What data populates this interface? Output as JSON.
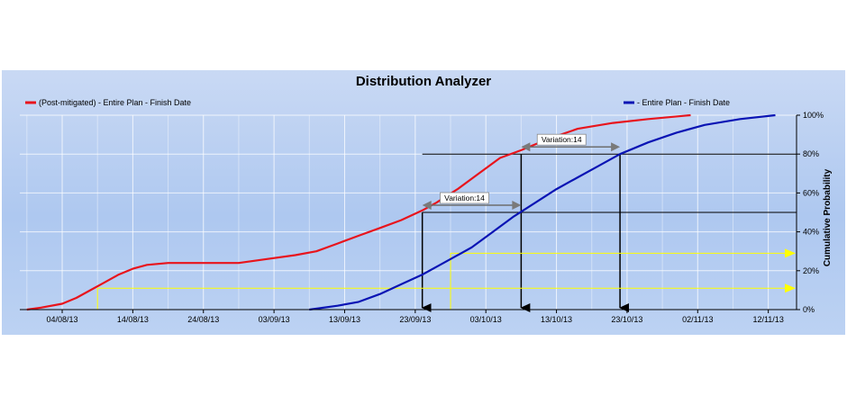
{
  "chart_data": {
    "type": "line",
    "title": "Distribution Analyzer",
    "xlabel": "",
    "ylabel": "Cumulative Probability",
    "xlim": [
      "2013-07-29",
      "2013-11-16"
    ],
    "ylim": [
      0,
      100
    ],
    "x_ticks": [
      "04/08/13",
      "14/08/13",
      "24/08/13",
      "03/09/13",
      "13/09/13",
      "23/09/13",
      "03/10/13",
      "13/10/13",
      "23/10/13",
      "02/11/13",
      "12/11/13"
    ],
    "y_ticks": [
      "0%",
      "20%",
      "40%",
      "60%",
      "80%",
      "100%"
    ],
    "grid": true,
    "legend_position": "top",
    "series": [
      {
        "name": "(Post-mitigated) - Entire Plan - Finish Date",
        "color": "#e8141c",
        "points": [
          [
            "2013-07-30",
            0
          ],
          [
            "2013-08-01",
            1
          ],
          [
            "2013-08-04",
            3
          ],
          [
            "2013-08-06",
            6
          ],
          [
            "2013-08-08",
            10
          ],
          [
            "2013-08-10",
            14
          ],
          [
            "2013-08-12",
            18
          ],
          [
            "2013-08-14",
            21
          ],
          [
            "2013-08-16",
            23
          ],
          [
            "2013-08-19",
            24
          ],
          [
            "2013-08-24",
            24
          ],
          [
            "2013-08-29",
            24
          ],
          [
            "2013-09-02",
            26
          ],
          [
            "2013-09-06",
            28
          ],
          [
            "2013-09-09",
            30
          ],
          [
            "2013-09-12",
            34
          ],
          [
            "2013-09-15",
            38
          ],
          [
            "2013-09-18",
            42
          ],
          [
            "2013-09-21",
            46
          ],
          [
            "2013-09-24",
            51
          ],
          [
            "2013-09-26",
            55
          ],
          [
            "2013-09-29",
            62
          ],
          [
            "2013-10-02",
            70
          ],
          [
            "2013-10-05",
            78
          ],
          [
            "2013-10-08",
            82
          ],
          [
            "2013-10-12",
            88
          ],
          [
            "2013-10-16",
            93
          ],
          [
            "2013-10-21",
            96
          ],
          [
            "2013-10-26",
            98
          ],
          [
            "2013-11-01",
            100
          ]
        ]
      },
      {
        "name": "- Entire Plan - Finish Date",
        "color": "#0a14b4",
        "points": [
          [
            "2013-09-08",
            0
          ],
          [
            "2013-09-12",
            2
          ],
          [
            "2013-09-15",
            4
          ],
          [
            "2013-09-18",
            8
          ],
          [
            "2013-09-21",
            13
          ],
          [
            "2013-09-24",
            18
          ],
          [
            "2013-09-27",
            24
          ],
          [
            "2013-10-01",
            32
          ],
          [
            "2013-10-04",
            40
          ],
          [
            "2013-10-07",
            48
          ],
          [
            "2013-10-10",
            55
          ],
          [
            "2013-10-13",
            62
          ],
          [
            "2013-10-16",
            68
          ],
          [
            "2013-10-19",
            74
          ],
          [
            "2013-10-22",
            80
          ],
          [
            "2013-10-26",
            86
          ],
          [
            "2013-10-30",
            91
          ],
          [
            "2013-11-03",
            95
          ],
          [
            "2013-11-08",
            98
          ],
          [
            "2013-11-13",
            100
          ]
        ]
      }
    ],
    "annotations": [
      {
        "label": "Variation:14",
        "at_probability": 50,
        "from": "2013-09-24",
        "to": "2013-10-08"
      },
      {
        "label": "Variation:14",
        "at_probability": 80,
        "from": "2013-10-08",
        "to": "2013-10-22"
      }
    ],
    "reference_lines": {
      "black_horizontal": [
        50,
        80
      ],
      "black_vertical": [
        "2013-09-24",
        "2013-10-08",
        "2013-10-22"
      ],
      "yellow_horizontal": [
        {
          "y": 11,
          "from": "2013-08-09"
        },
        {
          "y": 29,
          "from": "2013-09-28"
        }
      ]
    }
  }
}
